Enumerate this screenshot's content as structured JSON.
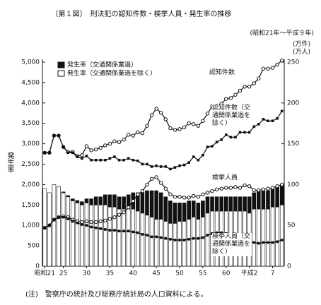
{
  "chart_data": {
    "type": "bar",
    "title": "〔第１図〕　刑法犯の認知件数・検挙人員・発生率の推移",
    "subtitle": "(昭和21年～平成９年)",
    "y_label": "発生率",
    "y2_label": "(万件)(万人)",
    "note": "(注)　警察庁の統計及び総務庁統計局の人口資料による。",
    "legend": "top-left",
    "categories": [
      "昭和21",
      null,
      null,
      null,
      "25",
      null,
      null,
      null,
      null,
      "30",
      null,
      null,
      null,
      null,
      "35",
      null,
      null,
      null,
      null,
      "40",
      null,
      null,
      null,
      null,
      "45",
      null,
      null,
      null,
      null,
      "50",
      null,
      null,
      null,
      null,
      "55",
      null,
      null,
      null,
      null,
      "60",
      null,
      null,
      null,
      null,
      "平成2",
      null,
      null,
      null,
      null,
      "7",
      null,
      null
    ],
    "ylim": [
      0,
      5000
    ],
    "yticks": [
      0,
      500,
      {
        "value": 1000,
        "label": "1,000"
      },
      {
        "value": 1500,
        "label": "1,500"
      },
      {
        "value": 2000,
        "label": "2,000"
      },
      {
        "value": 2500,
        "label": "2,500"
      },
      {
        "value": 3000,
        "label": "3,000"
      },
      {
        "value": 3500,
        "label": "3,500"
      },
      {
        "value": 4000,
        "label": "4,000"
      },
      {
        "value": 4500,
        "label": "4,500"
      },
      {
        "value": 5000,
        "label": "5,000"
      }
    ],
    "y2lim": [
      0,
      250
    ],
    "y2ticks": [
      0,
      50,
      100,
      150,
      200,
      250
    ],
    "series": [
      {
        "name": "発生率（交通関係業過を除く）",
        "type": "bar",
        "color": "#ffffff",
        "values": [
          1900,
          1800,
          2000,
          1950,
          1800,
          1700,
          1600,
          1550,
          1500,
          1550,
          1500,
          1500,
          1500,
          1500,
          1450,
          1450,
          1400,
          1400,
          1400,
          1400,
          1350,
          1300,
          1250,
          1200,
          1150,
          1150,
          1100,
          1050,
          1050,
          1100,
          1100,
          1150,
          1200,
          1150,
          1200,
          1300,
          1350,
          1350,
          1350,
          1350,
          1350,
          1350,
          1350,
          1350,
          1300,
          1400,
          1400,
          1400,
          1400,
          1450,
          1450,
          1500
        ]
      },
      {
        "name": "発生率（交通関係業過）",
        "type": "bar",
        "color": "#111111",
        "values": [
          0,
          0,
          0,
          0,
          20,
          30,
          50,
          60,
          80,
          100,
          150,
          200,
          200,
          250,
          300,
          300,
          300,
          300,
          350,
          400,
          450,
          500,
          600,
          650,
          700,
          650,
          600,
          550,
          500,
          450,
          450,
          450,
          400,
          400,
          400,
          400,
          350,
          350,
          350,
          350,
          350,
          350,
          350,
          350,
          400,
          400,
          450,
          450,
          450,
          450,
          500,
          500
        ]
      },
      {
        "name": "認知件数",
        "type": "line",
        "axis": "y2",
        "marker": "circle",
        "color": "#111111",
        "values": [
          139,
          139,
          160,
          160,
          146,
          140,
          140,
          135,
          136,
          147,
          142,
          143,
          145,
          148,
          150,
          153,
          152,
          155,
          161,
          160,
          164,
          163,
          172,
          185,
          193,
          188,
          180,
          169,
          167,
          168,
          170,
          175,
          174,
          172,
          178,
          187,
          196,
          196,
          199,
          205,
          206,
          210,
          215,
          220,
          220,
          224,
          230,
          242,
          242,
          243,
          247,
          252
        ]
      },
      {
        "name": "認知件数（交通関係業過を除く）",
        "type": "line",
        "axis": "y2",
        "marker": "square",
        "color": "#111111",
        "values": [
          139,
          139,
          160,
          160,
          146,
          139,
          139,
          134,
          132,
          135,
          130,
          130,
          130,
          130,
          132,
          134,
          130,
          130,
          132,
          130,
          129,
          125,
          125,
          122,
          123,
          122,
          122,
          119,
          121,
          123,
          124,
          127,
          134,
          130,
          136,
          146,
          147,
          152,
          155,
          161,
          158,
          158,
          164,
          164,
          164,
          171,
          174,
          180,
          178,
          178,
          181,
          190
        ]
      },
      {
        "name": "検挙人員",
        "type": "line",
        "axis": "y2",
        "marker": "circle",
        "color": "#111111",
        "values": [
          47,
          50,
          57,
          60,
          61,
          60,
          57,
          55,
          54,
          55,
          54,
          54,
          55,
          56,
          58,
          60,
          63,
          66,
          72,
          80,
          88,
          92,
          100,
          107,
          109,
          102,
          95,
          88,
          85,
          85,
          84,
          84,
          86,
          85,
          88,
          90,
          92,
          94,
          95,
          96,
          96,
          97,
          96,
          99,
          98,
          93,
          93,
          94,
          95,
          96,
          98,
          100
        ]
      },
      {
        "name": "検挙人員（交通関係業過を除く）",
        "type": "line",
        "axis": "y2",
        "marker": "square",
        "color": "#111111",
        "values": [
          47,
          50,
          57,
          60,
          60,
          58,
          55,
          53,
          51,
          50,
          48,
          47,
          46,
          45,
          44,
          44,
          43,
          43,
          43,
          42,
          41,
          39,
          38,
          36,
          36,
          35,
          34,
          33,
          32,
          32,
          32,
          33,
          34,
          34,
          35,
          38,
          40,
          41,
          41,
          40,
          39,
          37,
          36,
          34,
          30,
          29,
          28,
          29,
          29,
          29,
          30,
          32
        ]
      }
    ]
  }
}
